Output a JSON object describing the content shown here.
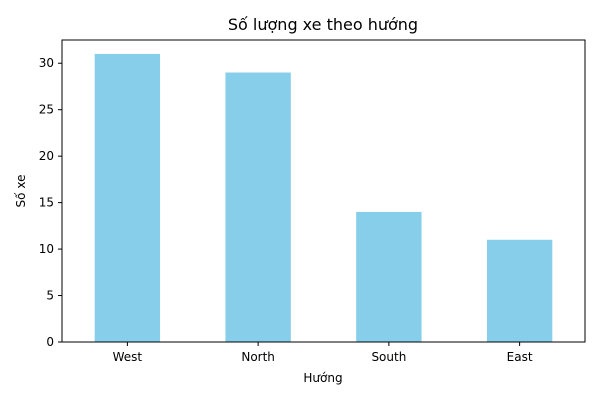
{
  "chart_data": {
    "type": "bar",
    "title": "Số lượng xe theo hướng",
    "xlabel": "Hướng",
    "ylabel": "Số xe",
    "categories": [
      "West",
      "North",
      "South",
      "East"
    ],
    "values": [
      31,
      29,
      14,
      11
    ],
    "ylim": [
      0,
      32.5
    ],
    "yticks": [
      0,
      5,
      10,
      15,
      20,
      25,
      30
    ],
    "grid": false,
    "bar_color": "#87ceeb"
  }
}
